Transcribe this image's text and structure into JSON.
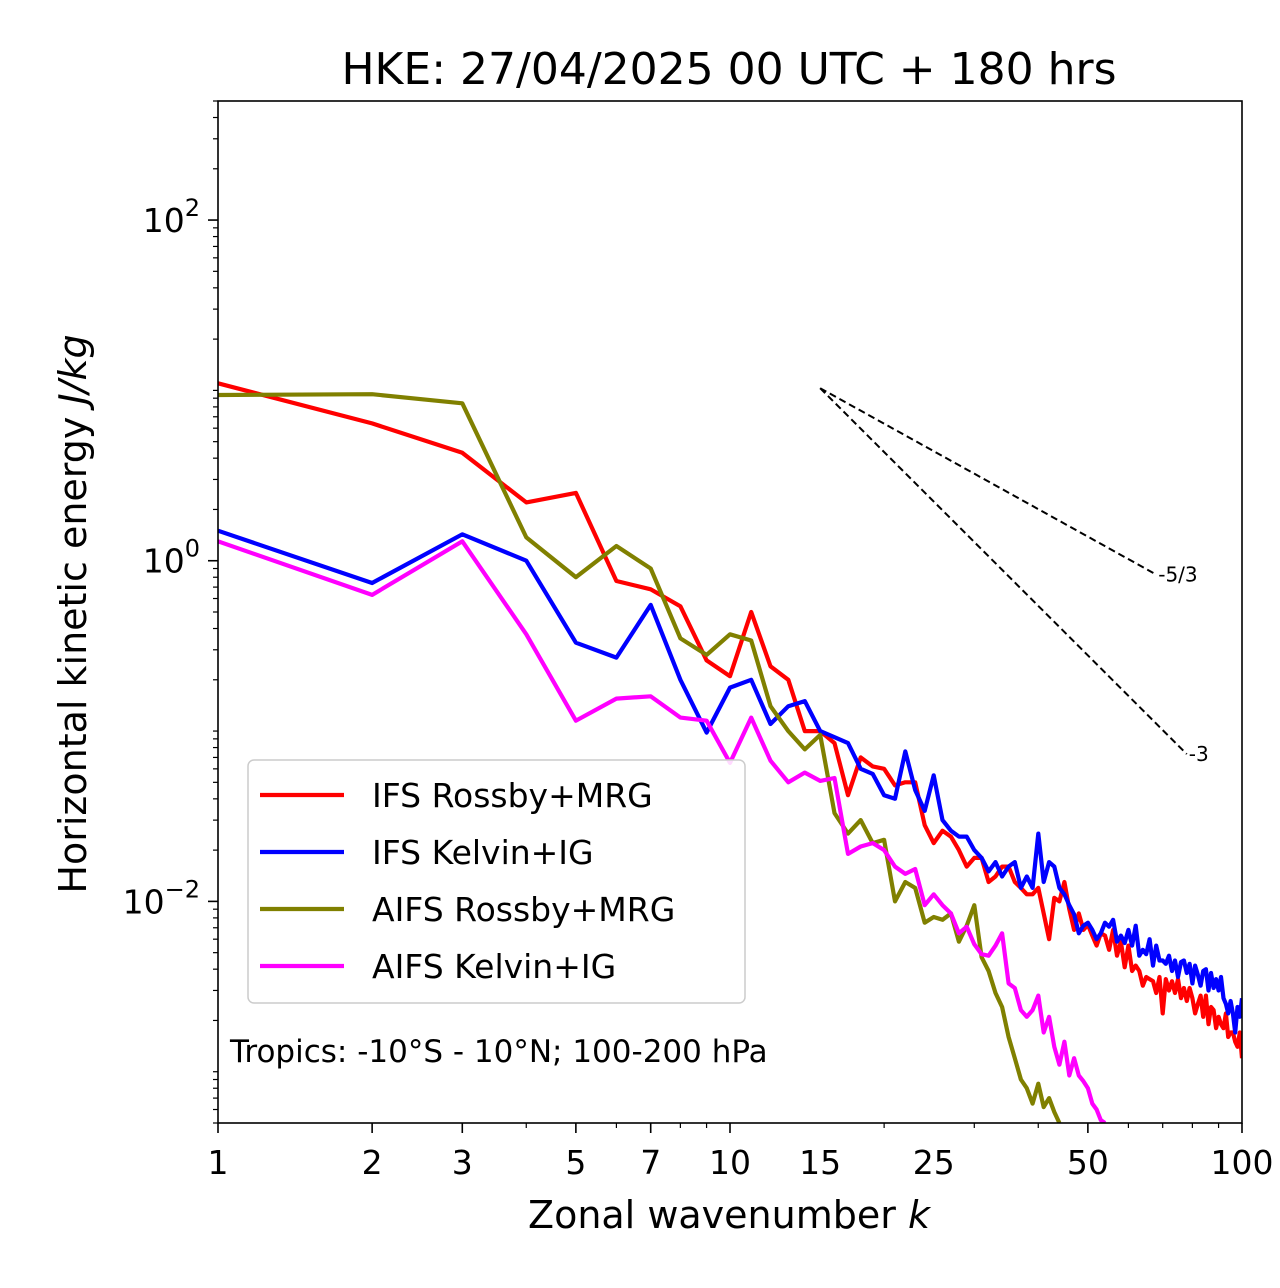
{
  "chart_data": {
    "type": "line",
    "title": "HKE: 27/04/2025 00 UTC + 180 hrs",
    "xlabel": "Zonal wavenumber",
    "xlabel_var": "k",
    "ylabel": "Horizontal kinetic energy",
    "ylabel_units": "J/kg",
    "xscale": "log",
    "yscale": "log",
    "xlim": [
      1,
      100
    ],
    "ylim": [
      0.0005,
      500
    ],
    "x_ticks": [
      1,
      2,
      3,
      5,
      7,
      10,
      15,
      25,
      50,
      100
    ],
    "x_tick_labels": [
      "1",
      "2",
      "3",
      "5",
      "7",
      "10",
      "15",
      "25",
      "50",
      "100"
    ],
    "y_ticks": [
      0.01,
      1,
      100
    ],
    "y_tick_labels": [
      {
        "base": "10",
        "exp": "−2"
      },
      {
        "base": "10",
        "exp": "0"
      },
      {
        "base": "10",
        "exp": "2"
      }
    ],
    "grid": false,
    "legend_position": "lower-left",
    "annotation": "Tropics: -10°S - 10°N; 100-200 hPa",
    "reference_slopes": [
      {
        "label": "-5/3",
        "slope": -1.6667,
        "x_start": 15,
        "x_end": 68,
        "y_start": 10.3
      },
      {
        "label": "-3",
        "slope": -3,
        "x_start": 15,
        "x_end": 78,
        "y_start": 10.3
      }
    ],
    "series": [
      {
        "name": "IFS Rossby+MRG",
        "color": "#ff0000",
        "points": [
          [
            1,
            11.0
          ],
          [
            2,
            6.4
          ],
          [
            3,
            4.3
          ],
          [
            4,
            2.2
          ],
          [
            5,
            2.5
          ],
          [
            6,
            0.76
          ],
          [
            7,
            0.68
          ],
          [
            8,
            0.54
          ],
          [
            9,
            0.26
          ],
          [
            10,
            0.21
          ],
          [
            11,
            0.5
          ],
          [
            12,
            0.24
          ],
          [
            13,
            0.2
          ],
          [
            14,
            0.1
          ],
          [
            15,
            0.1
          ],
          [
            16,
            0.085
          ],
          [
            17,
            0.042
          ],
          [
            18,
            0.07
          ],
          [
            19,
            0.062
          ],
          [
            20,
            0.06
          ],
          [
            21,
            0.048
          ],
          [
            22,
            0.05
          ],
          [
            23,
            0.05
          ],
          [
            24,
            0.028
          ],
          [
            25,
            0.022
          ],
          [
            26,
            0.026
          ],
          [
            27,
            0.024
          ],
          [
            28,
            0.02
          ],
          [
            29,
            0.016
          ],
          [
            30,
            0.018
          ],
          [
            31,
            0.018
          ],
          [
            32,
            0.013
          ],
          [
            33,
            0.014
          ],
          [
            34,
            0.016
          ],
          [
            35,
            0.016
          ],
          [
            36,
            0.013
          ],
          [
            37,
            0.012
          ],
          [
            38,
            0.011
          ],
          [
            39,
            0.011
          ],
          [
            40,
            0.012
          ],
          [
            41,
            0.0085
          ],
          [
            42,
            0.006
          ],
          [
            43,
            0.0105
          ],
          [
            44,
            0.01
          ],
          [
            45,
            0.013
          ],
          [
            46,
            0.009
          ],
          [
            47,
            0.0068
          ],
          [
            48,
            0.0085
          ],
          [
            49,
            0.0068
          ],
          [
            50,
            0.0073
          ],
          [
            51,
            0.0063
          ],
          [
            52,
            0.0055
          ],
          [
            53,
            0.0065
          ],
          [
            54,
            0.0063
          ],
          [
            55,
            0.0052
          ],
          [
            56,
            0.0068
          ],
          [
            57,
            0.0048
          ],
          [
            58,
            0.0058
          ],
          [
            59,
            0.0041
          ],
          [
            60,
            0.0055
          ],
          [
            61,
            0.0039
          ],
          [
            62,
            0.0042
          ],
          [
            63,
            0.0039
          ],
          [
            64,
            0.0032
          ],
          [
            65,
            0.0036
          ],
          [
            66,
            0.0035
          ],
          [
            67,
            0.0034
          ],
          [
            68,
            0.0029
          ],
          [
            69,
            0.0036
          ],
          [
            70,
            0.0022
          ],
          [
            71,
            0.0035
          ],
          [
            72,
            0.003
          ],
          [
            73,
            0.0034
          ],
          [
            74,
            0.0029
          ],
          [
            75,
            0.0035
          ],
          [
            76,
            0.0027
          ],
          [
            77,
            0.0031
          ],
          [
            78,
            0.0026
          ],
          [
            79,
            0.0031
          ],
          [
            80,
            0.0027
          ],
          [
            81,
            0.0022
          ],
          [
            82,
            0.0025
          ],
          [
            83,
            0.0028
          ],
          [
            84,
            0.0021
          ],
          [
            85,
            0.0028
          ],
          [
            86,
            0.0019
          ],
          [
            87,
            0.0024
          ],
          [
            88,
            0.0023
          ],
          [
            89,
            0.0018
          ],
          [
            90,
            0.0021
          ],
          [
            91,
            0.0019
          ],
          [
            92,
            0.0018
          ],
          [
            93,
            0.0022
          ],
          [
            94,
            0.0016
          ],
          [
            95,
            0.0017
          ],
          [
            96,
            0.0017
          ],
          [
            97,
            0.0015
          ],
          [
            98,
            0.0014
          ],
          [
            99,
            0.0017
          ],
          [
            100,
            0.0012
          ]
        ]
      },
      {
        "name": "IFS Kelvin+IG",
        "color": "#0000ff",
        "points": [
          [
            1,
            1.5
          ],
          [
            2,
            0.74
          ],
          [
            3,
            1.43
          ],
          [
            4,
            1.0
          ],
          [
            5,
            0.33
          ],
          [
            6,
            0.27
          ],
          [
            7,
            0.55
          ],
          [
            8,
            0.2
          ],
          [
            9,
            0.098
          ],
          [
            10,
            0.18
          ],
          [
            11,
            0.2
          ],
          [
            12,
            0.11
          ],
          [
            13,
            0.14
          ],
          [
            14,
            0.15
          ],
          [
            15,
            0.1
          ],
          [
            16,
            0.092
          ],
          [
            17,
            0.085
          ],
          [
            18,
            0.06
          ],
          [
            19,
            0.056
          ],
          [
            20,
            0.042
          ],
          [
            21,
            0.04
          ],
          [
            22,
            0.076
          ],
          [
            23,
            0.045
          ],
          [
            24,
            0.034
          ],
          [
            25,
            0.055
          ],
          [
            26,
            0.03
          ],
          [
            27,
            0.026
          ],
          [
            28,
            0.024
          ],
          [
            29,
            0.024
          ],
          [
            30,
            0.02
          ],
          [
            31,
            0.018
          ],
          [
            32,
            0.015
          ],
          [
            33,
            0.017
          ],
          [
            34,
            0.014
          ],
          [
            35,
            0.016
          ],
          [
            36,
            0.017
          ],
          [
            37,
            0.012
          ],
          [
            38,
            0.014
          ],
          [
            39,
            0.012
          ],
          [
            40,
            0.025
          ],
          [
            41,
            0.013
          ],
          [
            42,
            0.017
          ],
          [
            43,
            0.016
          ],
          [
            44,
            0.012
          ],
          [
            45,
            0.011
          ],
          [
            46,
            0.0095
          ],
          [
            47,
            0.0084
          ],
          [
            48,
            0.0065
          ],
          [
            49,
            0.0072
          ],
          [
            50,
            0.0075
          ],
          [
            51,
            0.0068
          ],
          [
            52,
            0.006
          ],
          [
            53,
            0.0065
          ],
          [
            54,
            0.0075
          ],
          [
            55,
            0.0071
          ],
          [
            56,
            0.0078
          ],
          [
            57,
            0.0058
          ],
          [
            58,
            0.0063
          ],
          [
            59,
            0.0057
          ],
          [
            60,
            0.0068
          ],
          [
            61,
            0.0055
          ],
          [
            62,
            0.0072
          ],
          [
            63,
            0.0048
          ],
          [
            64,
            0.0052
          ],
          [
            65,
            0.0049
          ],
          [
            66,
            0.006
          ],
          [
            67,
            0.0042
          ],
          [
            68,
            0.0055
          ],
          [
            69,
            0.0045
          ],
          [
            70,
            0.0045
          ],
          [
            71,
            0.0043
          ],
          [
            72,
            0.0048
          ],
          [
            73,
            0.0039
          ],
          [
            74,
            0.0045
          ],
          [
            75,
            0.0036
          ],
          [
            76,
            0.0044
          ],
          [
            77,
            0.0045
          ],
          [
            78,
            0.0038
          ],
          [
            79,
            0.0043
          ],
          [
            80,
            0.0033
          ],
          [
            81,
            0.0042
          ],
          [
            82,
            0.0037
          ],
          [
            83,
            0.0032
          ],
          [
            84,
            0.0039
          ],
          [
            85,
            0.004
          ],
          [
            86,
            0.003
          ],
          [
            87,
            0.0038
          ],
          [
            88,
            0.0031
          ],
          [
            89,
            0.0035
          ],
          [
            90,
            0.003
          ],
          [
            91,
            0.0036
          ],
          [
            92,
            0.0027
          ],
          [
            93,
            0.0025
          ],
          [
            94,
            0.0022
          ],
          [
            95,
            0.0026
          ],
          [
            96,
            0.0022
          ],
          [
            97,
            0.0017
          ],
          [
            98,
            0.0024
          ],
          [
            99,
            0.0021
          ],
          [
            100,
            0.0027
          ]
        ]
      },
      {
        "name": "AIFS Rossby+MRG",
        "color": "#808000",
        "points": [
          [
            1,
            9.4
          ],
          [
            2,
            9.5
          ],
          [
            3,
            8.4
          ],
          [
            4,
            1.37
          ],
          [
            5,
            0.8
          ],
          [
            6,
            1.22
          ],
          [
            7,
            0.9
          ],
          [
            8,
            0.35
          ],
          [
            9,
            0.28
          ],
          [
            10,
            0.37
          ],
          [
            11,
            0.34
          ],
          [
            12,
            0.14
          ],
          [
            13,
            0.1
          ],
          [
            14,
            0.078
          ],
          [
            15,
            0.095
          ],
          [
            16,
            0.033
          ],
          [
            17,
            0.025
          ],
          [
            18,
            0.03
          ],
          [
            19,
            0.022
          ],
          [
            20,
            0.023
          ],
          [
            21,
            0.01
          ],
          [
            22,
            0.013
          ],
          [
            23,
            0.012
          ],
          [
            24,
            0.0075
          ],
          [
            25,
            0.0081
          ],
          [
            26,
            0.0078
          ],
          [
            27,
            0.0085
          ],
          [
            28,
            0.0058
          ],
          [
            29,
            0.0072
          ],
          [
            30,
            0.0095
          ],
          [
            31,
            0.0047
          ],
          [
            32,
            0.0039
          ],
          [
            33,
            0.0029
          ],
          [
            34,
            0.0024
          ],
          [
            35,
            0.0016
          ],
          [
            36,
            0.0012
          ],
          [
            37,
            0.0009
          ],
          [
            38,
            0.0008
          ],
          [
            39,
            0.00065
          ],
          [
            40,
            0.00085
          ],
          [
            41,
            0.00062
          ],
          [
            42,
            0.0007
          ],
          [
            43,
            0.00058
          ],
          [
            44,
            0.0005
          ]
        ]
      },
      {
        "name": "AIFS Kelvin+IG",
        "color": "#ff00ff",
        "points": [
          [
            1,
            1.3
          ],
          [
            2,
            0.63
          ],
          [
            3,
            1.3
          ],
          [
            4,
            0.37
          ],
          [
            5,
            0.115
          ],
          [
            6,
            0.155
          ],
          [
            7,
            0.16
          ],
          [
            8,
            0.12
          ],
          [
            9,
            0.115
          ],
          [
            10,
            0.065
          ],
          [
            11,
            0.12
          ],
          [
            12,
            0.067
          ],
          [
            13,
            0.05
          ],
          [
            14,
            0.057
          ],
          [
            15,
            0.051
          ],
          [
            16,
            0.053
          ],
          [
            17,
            0.019
          ],
          [
            18,
            0.021
          ],
          [
            19,
            0.022
          ],
          [
            20,
            0.02
          ],
          [
            21,
            0.016
          ],
          [
            22,
            0.0145
          ],
          [
            23,
            0.0155
          ],
          [
            24,
            0.0095
          ],
          [
            25,
            0.011
          ],
          [
            26,
            0.0095
          ],
          [
            27,
            0.0085
          ],
          [
            28,
            0.0065
          ],
          [
            29,
            0.0071
          ],
          [
            30,
            0.0056
          ],
          [
            31,
            0.0049
          ],
          [
            32,
            0.0048
          ],
          [
            33,
            0.0055
          ],
          [
            34,
            0.0065
          ],
          [
            35,
            0.0033
          ],
          [
            36,
            0.0031
          ],
          [
            37,
            0.0023
          ],
          [
            38,
            0.0021
          ],
          [
            39,
            0.0023
          ],
          [
            40,
            0.0028
          ],
          [
            41,
            0.0017
          ],
          [
            42,
            0.0021
          ],
          [
            43,
            0.0014
          ],
          [
            44,
            0.0011
          ],
          [
            45,
            0.0015
          ],
          [
            46,
            0.00095
          ],
          [
            47,
            0.0012
          ],
          [
            48,
            0.00095
          ],
          [
            49,
            0.00088
          ],
          [
            50,
            0.0008
          ],
          [
            51,
            0.00065
          ],
          [
            52,
            0.0006
          ],
          [
            53,
            0.00052
          ],
          [
            54,
            0.0005
          ]
        ]
      }
    ]
  }
}
